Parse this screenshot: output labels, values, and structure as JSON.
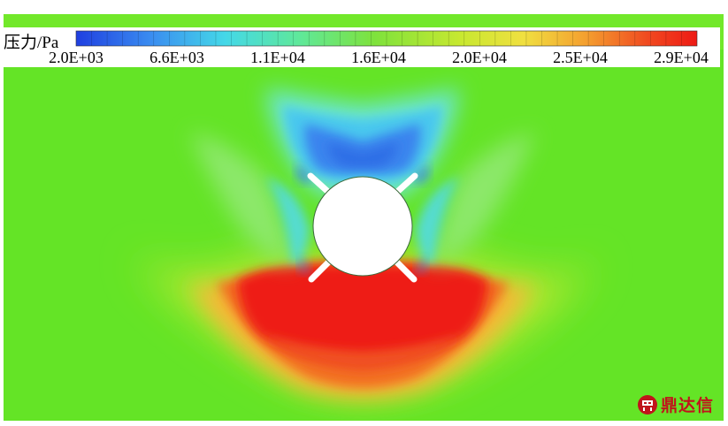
{
  "legend": {
    "label": "压力/Pa",
    "tick_labels": [
      "2.0E+03",
      "6.6E+03",
      "1.1E+04",
      "1.6E+04",
      "2.0E+04",
      "2.5E+04",
      "2.9E+04"
    ],
    "colors": [
      "#1f3fe0",
      "#3a8cf0",
      "#44d8e8",
      "#5fe89a",
      "#7ee23c",
      "#c8e830",
      "#f0e040",
      "#f4a030",
      "#f04a20",
      "#ee1a14"
    ]
  },
  "watermark": {
    "text": "鼎达信",
    "color": "#c0141b"
  },
  "field_colors": {
    "background": "#64e426",
    "high": "#ee1a14",
    "low": "#3a84ee"
  }
}
